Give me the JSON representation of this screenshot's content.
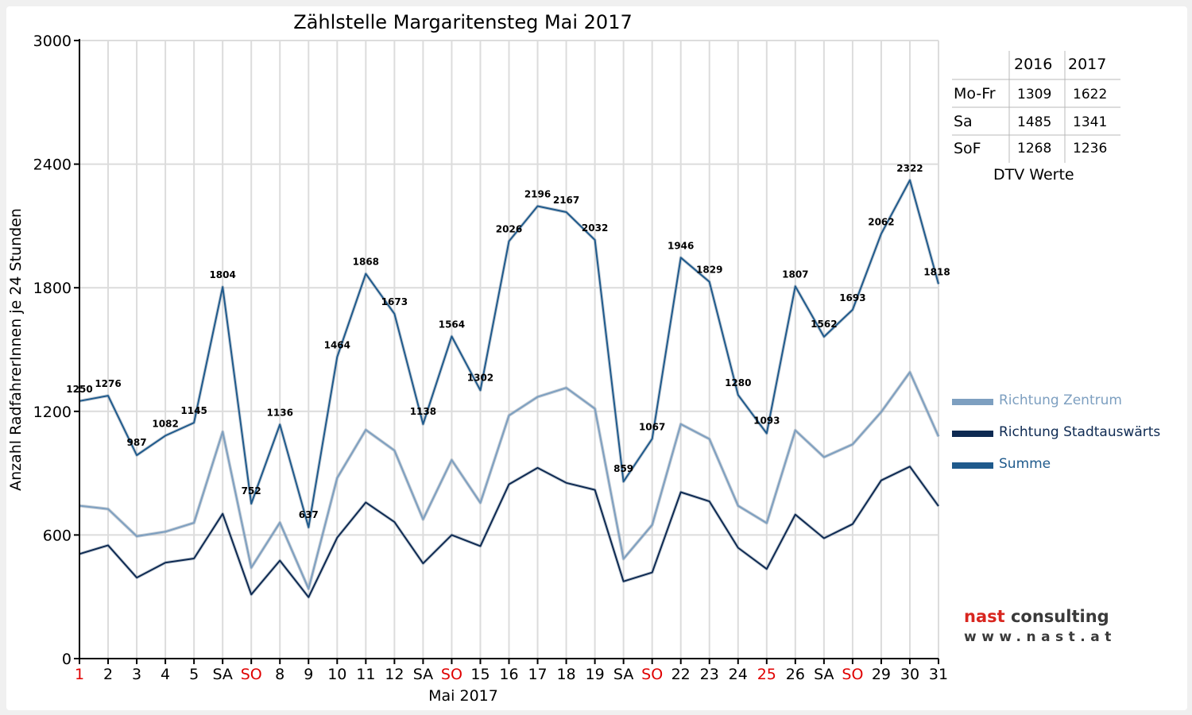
{
  "chart_data": {
    "type": "line",
    "title": "Zählstelle Margaritensteg Mai 2017",
    "xlabel": "Mai 2017",
    "ylabel": "Anzahl RadfahrerInnen je 24 Stunden",
    "ylim": [
      0,
      3000
    ],
    "yticks": [
      "0",
      "600",
      "1200",
      "1800",
      "2400",
      "3000"
    ],
    "ytick_values": [
      0,
      600,
      1200,
      1800,
      2400,
      3000
    ],
    "grid": true,
    "legend_position": "right",
    "categories": [
      "1",
      "2",
      "3",
      "4",
      "5",
      "SA",
      "SO",
      "8",
      "9",
      "10",
      "11",
      "12",
      "SA",
      "SO",
      "15",
      "16",
      "17",
      "18",
      "19",
      "SA",
      "SO",
      "22",
      "23",
      "24",
      "25",
      "26",
      "SA",
      "SO",
      "29",
      "30",
      "31"
    ],
    "category_colors": [
      "#e00000",
      "#000000",
      "#000000",
      "#000000",
      "#000000",
      "#000000",
      "#e00000",
      "#000000",
      "#000000",
      "#000000",
      "#000000",
      "#000000",
      "#000000",
      "#e00000",
      "#000000",
      "#000000",
      "#000000",
      "#000000",
      "#000000",
      "#000000",
      "#e00000",
      "#000000",
      "#000000",
      "#000000",
      "#e00000",
      "#000000",
      "#000000",
      "#e00000",
      "#000000",
      "#000000",
      "#000000"
    ],
    "series": [
      {
        "name": "Richtung Zentrum",
        "color": "#7d9fc0",
        "values": [
          742,
          726,
          594,
          616,
          659,
          1101,
          441,
          660,
          339,
          877,
          1110,
          1010,
          676,
          964,
          756,
          1180,
          1270,
          1314,
          1213,
          484,
          649,
          1138,
          1066,
          742,
          658,
          1108,
          978,
          1040,
          1197,
          1390,
          1078
        ]
      },
      {
        "name": "Richtung Stadtauswärts",
        "color": "#0e2a52",
        "values": [
          508,
          550,
          393,
          466,
          486,
          703,
          311,
          476,
          298,
          587,
          758,
          663,
          462,
          600,
          546,
          846,
          926,
          853,
          819,
          375,
          418,
          808,
          763,
          538,
          435,
          699,
          584,
          653,
          865,
          932,
          740
        ]
      },
      {
        "name": "Summe",
        "color": "#1f5a8c",
        "values": [
          1250,
          1276,
          987,
          1082,
          1145,
          1804,
          752,
          1136,
          637,
          1464,
          1868,
          1673,
          1138,
          1564,
          1302,
          2026,
          2196,
          2167,
          2032,
          859,
          1067,
          1946,
          1829,
          1280,
          1093,
          1807,
          1562,
          1693,
          2062,
          2322,
          1818
        ],
        "labels": [
          "1250",
          "1276",
          "987",
          "1082",
          "1145",
          "1804",
          "752",
          "1136",
          "637",
          "1464",
          "1868",
          "1673",
          "1138",
          "1564",
          "1302",
          "2026",
          "2196",
          "2167",
          "2032",
          "859",
          "1067",
          "1946",
          "1829",
          "1280",
          "1093",
          "1807",
          "1562",
          "1693",
          "2062",
          "2322",
          "1818"
        ]
      }
    ]
  },
  "dtv": {
    "header": [
      "2016",
      "2017"
    ],
    "rows": [
      {
        "label": "Mo-Fr",
        "v2016": "1309",
        "v2017": "1622"
      },
      {
        "label": "Sa",
        "v2016": "1485",
        "v2017": "1341"
      },
      {
        "label": "SoF",
        "v2016": "1268",
        "v2017": "1236"
      }
    ],
    "caption": "DTV Werte"
  },
  "legend": [
    {
      "label": "Richtung Zentrum",
      "color": "#7d9fc0"
    },
    {
      "label": "Richtung Stadtauswärts",
      "color": "#0e2a52"
    },
    {
      "label": "Summe",
      "color": "#1f5a8c"
    }
  ],
  "logo": {
    "brand_part1": "nast",
    "brand_part2": "consulting",
    "url": "www.nast.at"
  }
}
